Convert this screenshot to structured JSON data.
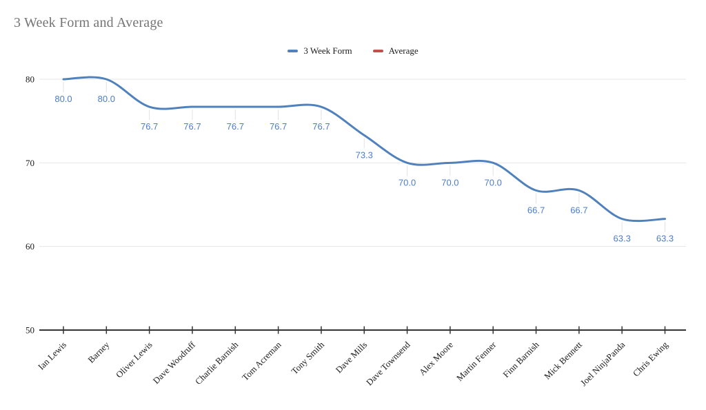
{
  "page": {
    "title": "3 Week Form and Average"
  },
  "legend": {
    "items": [
      {
        "label": "3 Week Form",
        "color": "#4f81bd"
      },
      {
        "label": "Average",
        "color": "#c0504d"
      }
    ]
  },
  "chart_data": {
    "type": "line",
    "title": "3 Week Form and Average",
    "categories": [
      "Ian Lewis",
      "Barney",
      "Oliver Lewis",
      "Dave Woodruff",
      "Charlie Barnish",
      "Tom Acreman",
      "Tony Smith",
      "Dave Mills",
      "Dave Townsend",
      "Alex Moore",
      "Martin Fenner",
      "Finn Barnish",
      "Mick Bennett",
      "Joel NinjaPanda",
      "Chris Ewing"
    ],
    "series": [
      {
        "name": "3 Week Form",
        "color": "#4f81bd",
        "values": [
          80.0,
          80.0,
          76.7,
          76.7,
          76.7,
          76.7,
          76.7,
          73.3,
          70.0,
          70.0,
          70.0,
          66.7,
          66.7,
          63.3,
          63.3
        ],
        "point_labels": [
          "80.0",
          "80.0",
          "76.7",
          "76.7",
          "76.7",
          "76.7",
          "76.7",
          "73.3",
          "70.0",
          "70.0",
          "70.0",
          "66.7",
          "66.7",
          "63.3",
          "63.3"
        ]
      },
      {
        "name": "Average",
        "color": "#c0504d",
        "values": [],
        "point_labels": []
      }
    ],
    "xlabel": "",
    "ylabel": "",
    "ylim": [
      50,
      80
    ],
    "yticks": [
      50,
      60,
      70,
      80
    ],
    "grid": true,
    "legend_position": "top-center",
    "curve": "smooth",
    "annotation_color": "#4b7ccc",
    "gridline_color": "#e6e6e6",
    "axis_color": "#333333"
  }
}
